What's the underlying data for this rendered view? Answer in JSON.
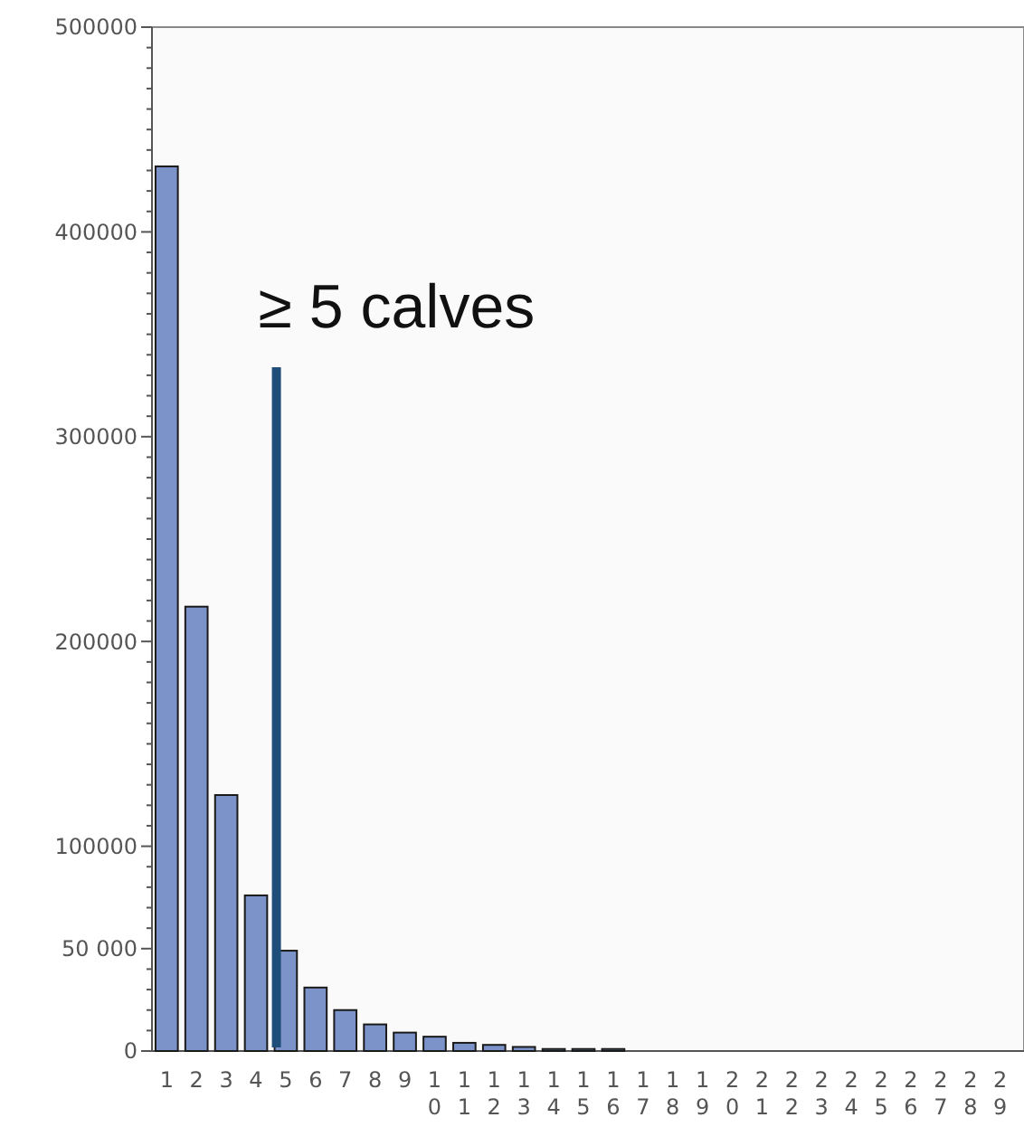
{
  "chart_data": {
    "type": "bar",
    "categories": [
      "1",
      "2",
      "3",
      "4",
      "5",
      "6",
      "7",
      "8",
      "9",
      "10",
      "11",
      "12",
      "13",
      "14",
      "15",
      "16",
      "17",
      "18",
      "19",
      "20",
      "21",
      "22",
      "23",
      "24",
      "25",
      "26",
      "27",
      "28",
      "29"
    ],
    "values": [
      432000,
      217000,
      125000,
      76000,
      49000,
      31000,
      20000,
      13000,
      9000,
      7000,
      4000,
      3000,
      2000,
      1000,
      1000,
      1000,
      0,
      0,
      0,
      0,
      0,
      0,
      0,
      0,
      0,
      0,
      0,
      0,
      0
    ],
    "color": "#7b93c9",
    "ylim": [
      0,
      500000
    ],
    "yticks": [
      0,
      {
        "value": 10000,
        "label": null
      },
      {
        "value": 20000,
        "label": null
      },
      {
        "value": 30000,
        "label": null
      },
      {
        "value": 40000,
        "label": null
      },
      {
        "value": 50000,
        "label": "50 000"
      },
      {
        "value": 60000,
        "label": null
      },
      {
        "value": 70000,
        "label": null
      },
      {
        "value": 80000,
        "label": null
      },
      {
        "value": 90000,
        "label": null
      },
      100000,
      {
        "value": 110000,
        "label": null
      },
      {
        "value": 120000,
        "label": null
      },
      {
        "value": 130000,
        "label": null
      },
      {
        "value": 140000,
        "label": null
      },
      {
        "value": 150000,
        "label": null
      },
      {
        "value": 160000,
        "label": null
      },
      {
        "value": 170000,
        "label": null
      },
      {
        "value": 180000,
        "label": null
      },
      {
        "value": 190000,
        "label": null
      },
      200000,
      {
        "value": 210000,
        "label": null
      },
      {
        "value": 220000,
        "label": null
      },
      {
        "value": 230000,
        "label": null
      },
      {
        "value": 240000,
        "label": null
      },
      {
        "value": 250000,
        "label": null
      },
      {
        "value": 260000,
        "label": null
      },
      {
        "value": 270000,
        "label": null
      },
      {
        "value": 280000,
        "label": null
      },
      {
        "value": 290000,
        "label": null
      },
      300000,
      {
        "value": 310000,
        "label": null
      },
      {
        "value": 320000,
        "label": null
      },
      {
        "value": 330000,
        "label": null
      },
      {
        "value": 340000,
        "label": null
      },
      {
        "value": 350000,
        "label": null
      },
      {
        "value": 360000,
        "label": null
      },
      {
        "value": 370000,
        "label": null
      },
      {
        "value": 380000,
        "label": null
      },
      {
        "value": 390000,
        "label": null
      },
      400000,
      {
        "value": 410000,
        "label": null
      },
      {
        "value": 420000,
        "label": null
      },
      {
        "value": 430000,
        "label": null
      },
      {
        "value": 440000,
        "label": null
      },
      {
        "value": 450000,
        "label": null
      },
      {
        "value": 460000,
        "label": null
      },
      {
        "value": 470000,
        "label": null
      },
      {
        "value": 480000,
        "label": null
      },
      {
        "value": 490000,
        "label": null
      },
      500000
    ],
    "ref_lines": [
      {
        "axis": "x",
        "value": "5",
        "label": "≥ 5 calves",
        "color": "#1f4e7a"
      }
    ],
    "grid": false
  }
}
